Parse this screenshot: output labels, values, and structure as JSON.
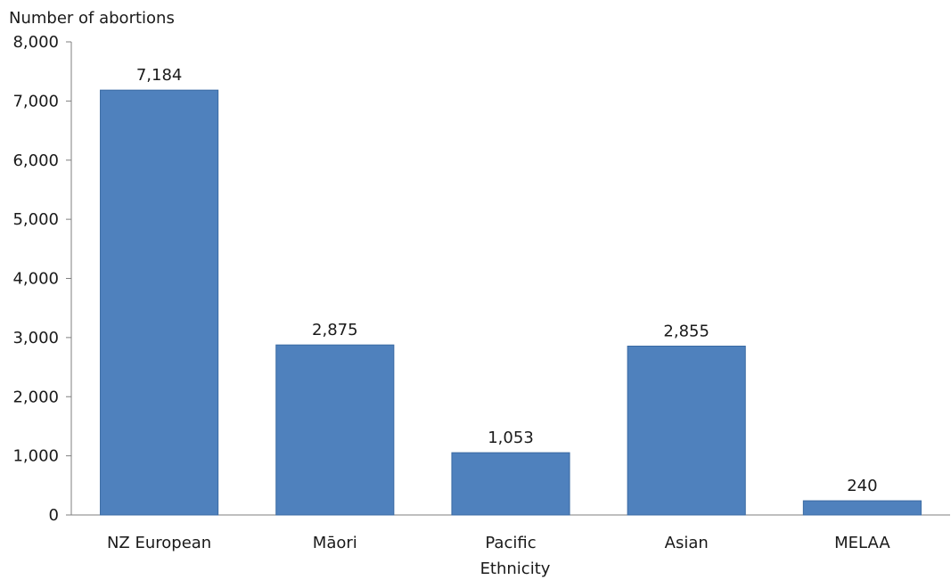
{
  "chart_data": {
    "type": "bar",
    "title": "",
    "xlabel": "Ethnicity",
    "ylabel": "Number of abortions",
    "categories": [
      "NZ European",
      "Māori",
      "Pacific",
      "Asian",
      "MELAA"
    ],
    "values": [
      7184,
      2875,
      1053,
      2855,
      240
    ],
    "data_labels": [
      "7,184",
      "2,875",
      "1,053",
      "2,855",
      "240"
    ],
    "ylim": [
      0,
      8000
    ],
    "yticks": [
      0,
      1000,
      2000,
      3000,
      4000,
      5000,
      6000,
      7000,
      8000
    ],
    "ytick_labels": [
      "0",
      "1,000",
      "2,000",
      "3,000",
      "4,000",
      "5,000",
      "6,000",
      "7,000",
      "8,000"
    ],
    "grid": false,
    "legend": "none",
    "bar_color": "#4f81bd",
    "bar_edge_color": "#3a6aa3"
  }
}
